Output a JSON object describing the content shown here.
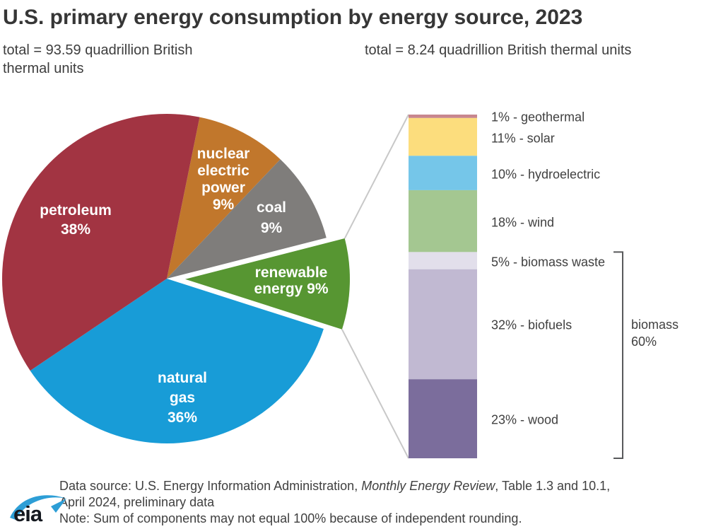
{
  "header": {
    "title": "U.S. primary energy consumption by energy source, 2023",
    "pie_total": "total = 93.59 quadrillion British thermal units",
    "bar_total": "total = 8.24 quadrillion British thermal units"
  },
  "chart_data": [
    {
      "type": "pie",
      "title": "U.S. primary energy consumption by energy source, 2023",
      "total_label": "total = 93.59 quadrillion British thermal units",
      "total_quadrillion_btu": 93.59,
      "units": "percent of total",
      "slices": [
        {
          "name": "nuclear electric power",
          "value": 9,
          "color": "#c1772c",
          "label_lines": [
            "nuclear",
            "electric",
            "power",
            "9%"
          ]
        },
        {
          "name": "coal",
          "value": 9,
          "color": "#7f7d7b",
          "label_lines": [
            "coal",
            "9%"
          ]
        },
        {
          "name": "renewable energy",
          "value": 9,
          "color": "#579632",
          "label_lines": [
            "renewable",
            "energy 9%"
          ],
          "exploded": true
        },
        {
          "name": "natural gas",
          "value": 36,
          "color": "#189cd7",
          "label_lines": [
            "natural",
            "gas",
            "36%"
          ]
        },
        {
          "name": "petroleum",
          "value": 38,
          "color": "#a23442",
          "label_lines": [
            "petroleum",
            "38%"
          ]
        }
      ]
    },
    {
      "type": "bar",
      "subtype": "single-stacked-column",
      "title": "renewable energy breakdown",
      "total_label": "total = 8.24 quadrillion British thermal units",
      "total_quadrillion_btu": 8.24,
      "units": "percent of renewable energy",
      "segments": [
        {
          "name": "geothermal",
          "value": 1,
          "color": "#c8868e",
          "label": "1% - geothermal"
        },
        {
          "name": "solar",
          "value": 11,
          "color": "#fcdd7d",
          "label": "11% - solar"
        },
        {
          "name": "hydroelectric",
          "value": 10,
          "color": "#75c6e9",
          "label": "10% - hydroelectric"
        },
        {
          "name": "wind",
          "value": 18,
          "color": "#a4c791",
          "label": "18% - wind"
        },
        {
          "name": "biomass waste",
          "value": 5,
          "color": "#e2dfeb",
          "label": "5% - biomass waste",
          "group": "biomass"
        },
        {
          "name": "biofuels",
          "value": 32,
          "color": "#c1b9d2",
          "label": "32% - biofuels",
          "group": "biomass"
        },
        {
          "name": "wood",
          "value": 23,
          "color": "#7b6d9c",
          "label": "23% - wood",
          "group": "biomass"
        }
      ],
      "group_annotation": {
        "group": "biomass",
        "value": 60,
        "label_lines": [
          "biomass",
          "60%"
        ]
      }
    }
  ],
  "footer": {
    "source_pre": "Data source: U.S. Energy Information Administration, ",
    "source_italic": "Monthly Energy Review",
    "source_post": ", Table 1.3 and 10.1,",
    "source_line2": "April 2024, preliminary data",
    "note": "Note: Sum of components may not equal 100% because of independent rounding.",
    "logo_text": "eia"
  }
}
